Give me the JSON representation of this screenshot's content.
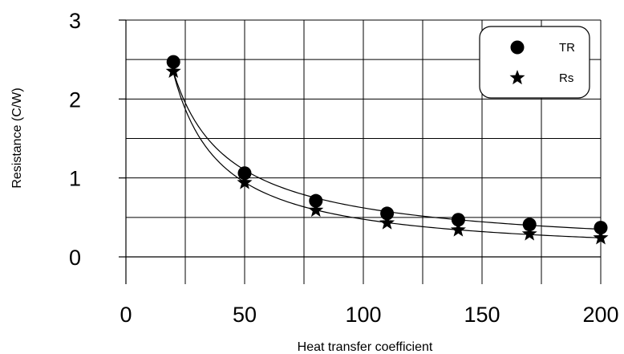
{
  "chart_data": {
    "type": "scatter",
    "xlabel": "Heat transfer coefficient",
    "ylabel": "Resistance (C/W)",
    "xlim": [
      0,
      200
    ],
    "ylim": [
      0,
      3
    ],
    "x_ticks": [
      0,
      50,
      100,
      150,
      200
    ],
    "y_ticks": [
      0,
      1,
      2,
      3
    ],
    "x_tick_labels": [
      "0",
      "50",
      "100",
      "150",
      "200"
    ],
    "y_tick_labels": [
      "0",
      "1",
      "2",
      "3"
    ],
    "grid": true,
    "legend_position": "top-right",
    "series": [
      {
        "name": "TR",
        "marker": "circle",
        "color": "#000000",
        "fit_curve": true,
        "x": [
          20,
          50,
          80,
          110,
          140,
          170,
          200
        ],
        "y": [
          2.47,
          1.06,
          0.71,
          0.55,
          0.47,
          0.41,
          0.37
        ]
      },
      {
        "name": "Rs",
        "marker": "star",
        "color": "#000000",
        "fit_curve": true,
        "x": [
          20,
          50,
          80,
          110,
          140,
          170,
          200
        ],
        "y": [
          2.35,
          0.94,
          0.59,
          0.43,
          0.34,
          0.29,
          0.24
        ]
      }
    ]
  }
}
